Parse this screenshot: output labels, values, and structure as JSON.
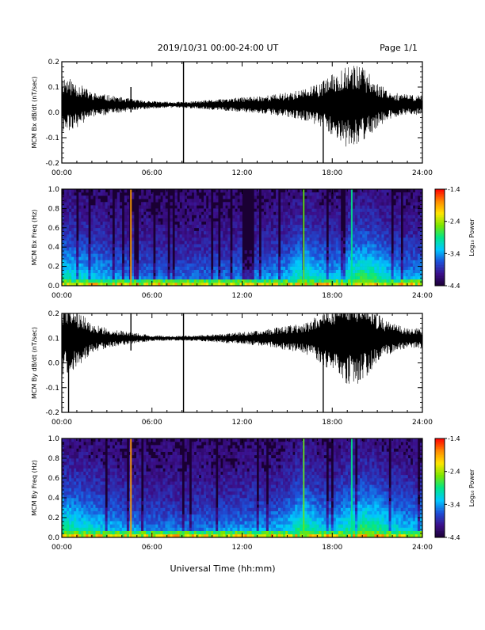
{
  "header": {
    "date_range": "2019/10/31  00:00-24:00 UT",
    "page": "Page 1/1"
  },
  "footer": {
    "xlabel": "Universal Time (hh:mm)"
  },
  "colors": {
    "trace": "#000000",
    "spectrogram_background": "#1a0033",
    "colormap": [
      "#1a0033",
      "#3b0f8a",
      "#1d4fd8",
      "#00c8ff",
      "#00e68a",
      "#7ae600",
      "#ffe600",
      "#ff8a00",
      "#ff0000"
    ]
  },
  "chart_data": [
    {
      "type": "line",
      "name": "bx_dbdt",
      "ylabel": "MCM Bx dB/dt (nT/sec)",
      "ylim": [
        -0.2,
        0.2
      ],
      "yticks": [
        "-0.2",
        "-0.1",
        "0.0",
        "0.1",
        "0.2"
      ],
      "xlim": [
        0,
        24
      ],
      "xticks": [
        "00:00",
        "06:00",
        "12:00",
        "18:00",
        "24:00"
      ],
      "baseline": 0.03,
      "envelope": {
        "x": [
          0,
          1,
          2,
          3,
          4,
          5,
          6,
          7,
          8,
          9,
          10,
          11,
          12,
          13,
          14,
          15,
          16,
          17,
          18,
          19,
          20,
          21,
          22,
          23,
          24
        ],
        "amplitude": [
          0.12,
          0.09,
          0.05,
          0.04,
          0.03,
          0.02,
          0.015,
          0.012,
          0.012,
          0.015,
          0.02,
          0.025,
          0.03,
          0.035,
          0.04,
          0.05,
          0.06,
          0.08,
          0.12,
          0.17,
          0.15,
          0.09,
          0.05,
          0.04,
          0.04
        ]
      },
      "spikes": [
        {
          "x": 4.6,
          "low": 0.0,
          "high": 0.1
        },
        {
          "x": 8.1,
          "low": -0.2,
          "high": 0.2
        },
        {
          "x": 17.4,
          "low": -0.2,
          "high": 0.12
        }
      ],
      "grid": false,
      "legend": "none"
    },
    {
      "type": "heatmap",
      "name": "bx_spectrogram",
      "ylabel": "MCM Bx Freq (Hz)",
      "ylim": [
        0,
        1.0
      ],
      "yticks": [
        "0.0",
        "0.2",
        "0.4",
        "0.6",
        "0.8",
        "1.0"
      ],
      "xlim": [
        0,
        24
      ],
      "xticks": [
        "00:00",
        "06:00",
        "12:00",
        "18:00",
        "24:00"
      ],
      "colorbar": {
        "label": "Log₁₀ Power",
        "min": -4.4,
        "max": -1.4,
        "ticks": [
          "-1.4",
          "-2.4",
          "-3.4",
          "-4.4"
        ]
      },
      "activity": {
        "x": [
          0,
          2,
          4,
          6,
          8,
          10,
          12,
          14,
          15,
          16,
          17,
          18,
          19,
          20,
          21,
          22,
          23,
          24
        ],
        "level": [
          0.5,
          0.42,
          0.32,
          0.28,
          0.27,
          0.28,
          0.3,
          0.33,
          0.38,
          0.55,
          0.45,
          0.38,
          0.5,
          0.6,
          0.55,
          0.4,
          0.35,
          0.35
        ]
      },
      "vertical_streaks": [
        {
          "x": 4.6,
          "level": 0.85
        },
        {
          "x": 16.1,
          "level": 0.6
        },
        {
          "x": 19.3,
          "level": 0.5
        }
      ],
      "seed": 7
    },
    {
      "type": "line",
      "name": "by_dbdt",
      "ylabel": "MCM By dB/dt (nT/sec)",
      "ylim": [
        -0.2,
        0.2
      ],
      "yticks": [
        "-0.2",
        "-0.1",
        "0.0",
        "0.1",
        "0.2"
      ],
      "xlim": [
        0,
        24
      ],
      "xticks": [
        "00:00",
        "06:00",
        "12:00",
        "18:00",
        "24:00"
      ],
      "baseline": 0.1,
      "envelope": {
        "x": [
          0,
          1,
          2,
          3,
          4,
          5,
          6,
          7,
          8,
          9,
          10,
          11,
          12,
          13,
          14,
          15,
          16,
          17,
          18,
          19,
          20,
          21,
          22,
          23,
          24
        ],
        "amplitude": [
          0.16,
          0.12,
          0.06,
          0.04,
          0.03,
          0.02,
          0.012,
          0.01,
          0.01,
          0.012,
          0.015,
          0.02,
          0.025,
          0.03,
          0.04,
          0.05,
          0.06,
          0.09,
          0.14,
          0.2,
          0.18,
          0.1,
          0.06,
          0.04,
          0.04
        ]
      },
      "spikes": [
        {
          "x": 0.45,
          "low": -0.2,
          "high": 0.2
        },
        {
          "x": 4.6,
          "low": 0.05,
          "high": 0.2
        },
        {
          "x": 8.1,
          "low": -0.2,
          "high": 0.2
        },
        {
          "x": 17.4,
          "low": -0.2,
          "high": 0.15
        }
      ],
      "grid": false,
      "legend": "none"
    },
    {
      "type": "heatmap",
      "name": "by_spectrogram",
      "ylabel": "MCM By Freq (Hz)",
      "ylim": [
        0,
        1.0
      ],
      "yticks": [
        "0.0",
        "0.2",
        "0.4",
        "0.6",
        "0.8",
        "1.0"
      ],
      "xlim": [
        0,
        24
      ],
      "xticks": [
        "00:00",
        "06:00",
        "12:00",
        "18:00",
        "24:00"
      ],
      "colorbar": {
        "label": "Log₁₀ Power",
        "min": -4.4,
        "max": -1.4,
        "ticks": [
          "-1.4",
          "-2.4",
          "-3.4",
          "-4.4"
        ]
      },
      "activity": {
        "x": [
          0,
          2,
          4,
          6,
          8,
          10,
          12,
          14,
          15,
          16,
          17,
          18,
          19,
          20,
          21,
          22,
          23,
          24
        ],
        "level": [
          0.55,
          0.45,
          0.35,
          0.3,
          0.28,
          0.3,
          0.33,
          0.35,
          0.4,
          0.58,
          0.45,
          0.4,
          0.52,
          0.6,
          0.55,
          0.45,
          0.4,
          0.4
        ]
      },
      "vertical_streaks": [
        {
          "x": 4.6,
          "level": 0.85
        },
        {
          "x": 16.1,
          "level": 0.6
        },
        {
          "x": 19.3,
          "level": 0.5
        }
      ],
      "seed": 13
    }
  ]
}
